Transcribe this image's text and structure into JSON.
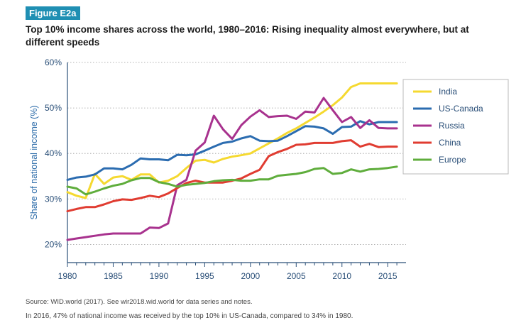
{
  "figure_label": "Figure E2a",
  "title": "Top 10% income shares across the world, 1980–2016: Rising inequality almost everywhere, but at different speeds",
  "source_note": "Source: WID.world (2017). See wir2018.wid.world for data series and notes.",
  "caption": "In 2016, 47% of national income was received by the top 10% in US-Canada, compared to 34% in 1980.",
  "chart_data": {
    "type": "line",
    "ylabel": "Share of national income (%)",
    "xlabel": "",
    "xlim": [
      1980,
      2017
    ],
    "ylim": [
      16,
      60
    ],
    "y_ticks": [
      20,
      30,
      40,
      50,
      60
    ],
    "y_tick_labels": [
      "20%",
      "30%",
      "40%",
      "50%",
      "60%"
    ],
    "x_ticks": [
      1980,
      1985,
      1990,
      1995,
      2000,
      2005,
      2010,
      2015
    ],
    "x_tick_labels": [
      "1980",
      "1985",
      "1990",
      "1995",
      "2000",
      "2005",
      "2010",
      "2015"
    ],
    "grid": "horizontal dotted",
    "legend_position": "right",
    "x": [
      1980,
      1981,
      1982,
      1983,
      1984,
      1985,
      1986,
      1987,
      1988,
      1989,
      1990,
      1991,
      1992,
      1993,
      1994,
      1995,
      1996,
      1997,
      1998,
      1999,
      2000,
      2001,
      2002,
      2003,
      2004,
      2005,
      2006,
      2007,
      2008,
      2009,
      2010,
      2011,
      2012,
      2013,
      2014,
      2015,
      2016
    ],
    "series": [
      {
        "name": "India",
        "color": "#f5d930",
        "values": [
          31.5,
          30.7,
          30.2,
          35.5,
          33.3,
          34.7,
          35.0,
          34.2,
          35.4,
          35.4,
          33.6,
          34.0,
          35.0,
          36.8,
          38.4,
          38.6,
          38.0,
          38.8,
          39.3,
          39.6,
          40.0,
          41.1,
          42.2,
          43.3,
          44.5,
          45.5,
          46.7,
          47.9,
          49.2,
          50.6,
          52.3,
          54.6,
          55.4,
          55.4,
          55.4,
          55.4,
          55.4
        ]
      },
      {
        "name": "US-Canada",
        "color": "#2b6cb0",
        "values": [
          34.2,
          34.7,
          34.9,
          35.4,
          36.7,
          36.7,
          36.5,
          37.5,
          38.9,
          38.7,
          38.7,
          38.5,
          39.7,
          39.6,
          39.8,
          40.6,
          41.5,
          42.3,
          42.6,
          43.3,
          43.8,
          42.8,
          42.7,
          42.8,
          43.8,
          44.9,
          46.0,
          45.9,
          45.5,
          44.3,
          45.8,
          45.9,
          47.1,
          46.4,
          46.9,
          46.9,
          46.9
        ]
      },
      {
        "name": "Russia",
        "color": "#a8328e",
        "values": [
          21.0,
          21.3,
          21.6,
          21.9,
          22.2,
          22.4,
          22.4,
          22.4,
          22.4,
          23.7,
          23.6,
          24.6,
          33.0,
          34.2,
          40.6,
          42.4,
          48.3,
          45.3,
          43.2,
          46.2,
          48.1,
          49.5,
          48.0,
          48.2,
          48.3,
          47.6,
          49.2,
          49.0,
          52.2,
          49.5,
          46.9,
          48.0,
          45.6,
          47.3,
          45.6,
          45.5,
          45.5
        ]
      },
      {
        "name": "China",
        "color": "#e03c31",
        "values": [
          27.3,
          27.8,
          28.2,
          28.2,
          28.8,
          29.5,
          29.9,
          29.8,
          30.2,
          30.7,
          30.4,
          31.2,
          32.4,
          33.5,
          34.0,
          33.6,
          33.6,
          33.6,
          34.0,
          34.5,
          35.5,
          36.4,
          39.4,
          40.3,
          41.0,
          41.9,
          42.0,
          42.3,
          42.3,
          42.3,
          42.7,
          42.9,
          41.5,
          42.1,
          41.4,
          41.5,
          41.5
        ]
      },
      {
        "name": "Europe",
        "color": "#5fad3c",
        "values": [
          32.7,
          32.3,
          31.0,
          31.6,
          32.3,
          32.9,
          33.3,
          34.1,
          34.6,
          34.6,
          33.7,
          33.3,
          32.7,
          33.1,
          33.3,
          33.5,
          33.9,
          34.1,
          34.2,
          34.0,
          34.0,
          34.3,
          34.3,
          35.1,
          35.3,
          35.5,
          35.9,
          36.6,
          36.8,
          35.5,
          35.7,
          36.5,
          36.0,
          36.5,
          36.6,
          36.8,
          37.1
        ]
      }
    ]
  }
}
